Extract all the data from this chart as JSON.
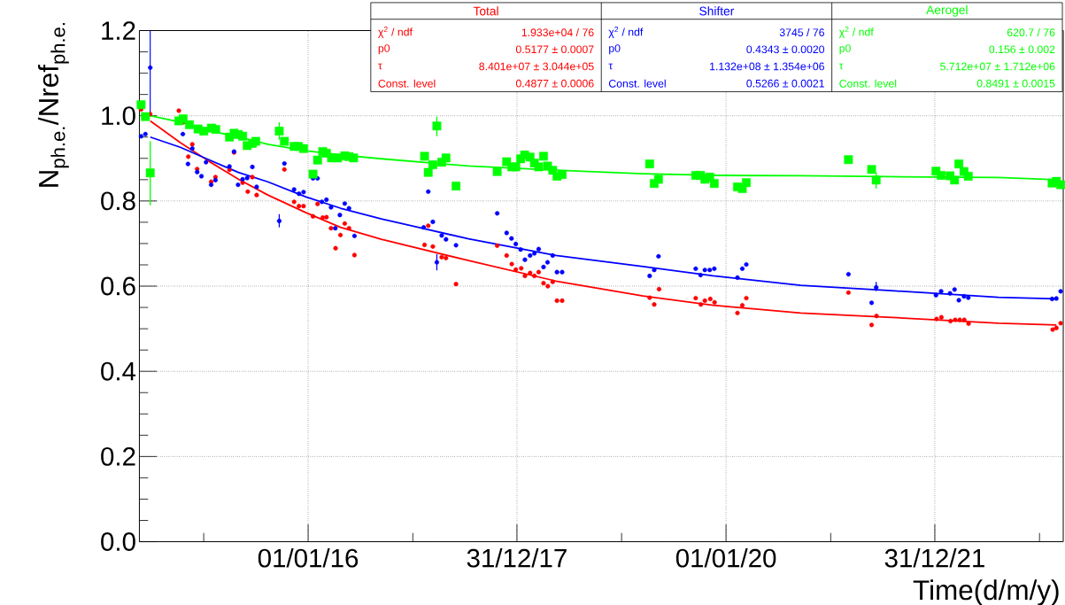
{
  "chart_data": {
    "type": "scatter",
    "ylabel": "N$_{ph.e.}$/Nref$_{ph.e.}$",
    "xlabel": "Time(d/m/y)",
    "xlim": [
      "2014-05-21",
      "2023-03-25"
    ],
    "ylim": [
      0,
      1.2
    ],
    "xticks": [
      {
        "value": "2015-01-01",
        "label": null
      },
      {
        "value": "2016-01-01",
        "label": "01/01/16"
      },
      {
        "value": "2017-01-01",
        "label": null
      },
      {
        "value": "2017-12-31",
        "label": "31/12/17"
      },
      {
        "value": "2019-01-01",
        "label": null
      },
      {
        "value": "2020-01-01",
        "label": "01/01/20"
      },
      {
        "value": "2021-01-01",
        "label": null
      },
      {
        "value": "2021-12-31",
        "label": "31/12/21"
      },
      {
        "value": "2023-01-01",
        "label": null
      }
    ],
    "yticks": [
      {
        "value": 0,
        "label": "0.0"
      },
      {
        "value": 0.05,
        "label": null
      },
      {
        "value": 0.1,
        "label": null
      },
      {
        "value": 0.15,
        "label": null
      },
      0.2,
      {
        "value": 0.25,
        "label": null
      },
      {
        "value": 0.3,
        "label": null
      },
      {
        "value": 0.35,
        "label": null
      },
      0.4,
      {
        "value": 0.45,
        "label": null
      },
      {
        "value": 0.5,
        "label": null
      },
      {
        "value": 0.55,
        "label": null
      },
      0.6,
      {
        "value": 0.65,
        "label": null
      },
      {
        "value": 0.7,
        "label": null
      },
      {
        "value": 0.75,
        "label": null
      },
      0.8,
      {
        "value": 0.85,
        "label": null
      },
      {
        "value": 0.9,
        "label": null
      },
      {
        "value": 0.95,
        "label": null
      },
      {
        "value": 1,
        "label": "1.0"
      },
      {
        "value": 1.05,
        "label": null
      },
      {
        "value": 1.1,
        "label": null
      },
      {
        "value": 1.15,
        "label": null
      },
      1.2
    ],
    "grid": true,
    "annotations": [
      "χ$^{2}$ / ndf",
      "1.933e+04 / 76",
      "p0",
      "0.5177 ± 0.0007",
      "τ",
      "8.401e+07 ± 3.044e+05",
      "Const. level",
      "0.4877 ± 0.0006",
      "χ$^{2}$ / ndf",
      "3745 / 76",
      "p0",
      "0.4343 ± 0.0020",
      "τ",
      "1.132e+08 ± 1.354e+06",
      "Const. level",
      "0.5266 ± 0.0021",
      "χ$^{2}$ / ndf",
      "620.7 / 76",
      "p0",
      "0.156 ± 0.002",
      "τ",
      "5.712e+07 ± 1.712e+06",
      "Const. level",
      "0.8491 ± 0.0015"
    ],
    "series": [
      {
        "name": "Total",
        "color": "#ff0000",
        "marker": "circle",
        "x": [
          "2014-05-27",
          "2014-06-28",
          "2014-10-06",
          "2014-10-21",
          "2014-11-22",
          "2014-11-08",
          "2014-12-09",
          "2015-01-27",
          "2015-02-11",
          "2015-04-01",
          "2015-04-17",
          "2015-05-17",
          "2015-06-04",
          "2015-06-20",
          "2015-07-05",
          "2015-10-10",
          "2015-11-13",
          "2015-11-30",
          "2015-12-16",
          "2016-01-18",
          "2016-02-03",
          "2016-02-21",
          "2016-03-05",
          "2016-03-21",
          "2016-04-06",
          "2016-04-23",
          "2016-05-08",
          "2016-05-23",
          "2016-06-11",
          "2017-02-11",
          "2017-02-24",
          "2017-03-12",
          "2017-04-12",
          "2017-04-27",
          "2017-06-01",
          "2017-10-23",
          "2017-11-25",
          "2017-12-13",
          "2017-12-27",
          "2018-01-15",
          "2018-01-28",
          "2018-02-15",
          "2018-03-02",
          "2018-03-17",
          "2018-04-03",
          "2018-04-18",
          "2018-05-05",
          "2018-05-20",
          "2018-06-07",
          "2019-04-09",
          "2019-04-25",
          "2019-05-12",
          "2019-09-17",
          "2019-10-05",
          "2019-10-19",
          "2019-11-07",
          "2019-11-22",
          "2020-02-10",
          "2020-02-27",
          "2020-03-12",
          "2021-03-04",
          "2021-05-24",
          "2021-06-10",
          "2022-01-06",
          "2022-01-23",
          "2022-02-24",
          "2022-03-12",
          "2022-03-28",
          "2022-04-13",
          "2022-04-28",
          "2023-02-16",
          "2023-03-01",
          "2023-03-16"
        ],
        "values": [
          1.015,
          1.004,
          1.012,
          0.985,
          0.933,
          0.904,
          0.875,
          0.845,
          0.856,
          0.873,
          0.914,
          0.843,
          0.822,
          0.856,
          0.814,
          0.874,
          0.798,
          0.788,
          0.788,
          0.764,
          0.793,
          0.761,
          0.762,
          0.736,
          0.689,
          0.72,
          0.747,
          0.736,
          0.673,
          0.697,
          0.742,
          0.693,
          0.668,
          0.666,
          0.605,
          0.695,
          0.672,
          0.652,
          0.639,
          0.642,
          0.624,
          0.631,
          0.624,
          0.633,
          0.607,
          0.6,
          0.61,
          0.566,
          0.566,
          0.573,
          0.557,
          0.593,
          0.572,
          0.557,
          0.566,
          0.57,
          0.562,
          0.537,
          0.555,
          0.572,
          0.585,
          0.509,
          0.53,
          0.523,
          0.527,
          0.518,
          0.521,
          0.521,
          0.521,
          0.512,
          0.498,
          0.502,
          0.513
        ]
      },
      {
        "name": "Shifter",
        "color": "#0000ff",
        "marker": "circle",
        "x": [
          "2014-05-27",
          "2014-06-11",
          "2014-06-28",
          "2014-10-20",
          "2014-11-07",
          "2014-11-22",
          "2014-12-09",
          "2014-12-24",
          "2015-01-09",
          "2015-01-27",
          "2015-02-11",
          "2015-04-01",
          "2015-04-17",
          "2015-05-01",
          "2015-05-17",
          "2015-06-02",
          "2015-06-20",
          "2015-07-05",
          "2015-09-22",
          "2015-10-10",
          "2015-11-13",
          "2015-11-30",
          "2015-12-16",
          "2016-01-18",
          "2016-02-03",
          "2016-02-18",
          "2016-03-05",
          "2016-03-21",
          "2016-04-05",
          "2016-04-21",
          "2016-05-08",
          "2016-05-23",
          "2016-06-11",
          "2017-02-24",
          "2017-02-08",
          "2017-03-12",
          "2017-03-26",
          "2017-04-12",
          "2017-04-27",
          "2017-06-01",
          "2017-10-23",
          "2017-11-25",
          "2017-12-12",
          "2017-12-27",
          "2018-01-13",
          "2018-01-28",
          "2018-02-15",
          "2018-03-02",
          "2018-03-17",
          "2018-04-03",
          "2018-04-17",
          "2018-05-05",
          "2018-05-20",
          "2018-06-07",
          "2019-04-09",
          "2019-04-25",
          "2019-05-10",
          "2019-09-17",
          "2019-10-04",
          "2019-10-19",
          "2019-11-05",
          "2019-11-21",
          "2020-02-10",
          "2020-02-27",
          "2020-03-12",
          "2021-03-04",
          "2021-05-24",
          "2021-06-09",
          "2022-01-04",
          "2022-01-22",
          "2022-02-22",
          "2022-03-10",
          "2022-03-25",
          "2022-04-12",
          "2022-04-27",
          "2023-02-14",
          "2023-03-01",
          "2023-03-16"
        ],
        "values": [
          0.952,
          0.957,
          1.113,
          0.957,
          0.887,
          0.923,
          0.868,
          0.858,
          0.891,
          0.838,
          0.849,
          0.881,
          0.916,
          0.838,
          0.851,
          0.854,
          0.88,
          0.833,
          0.753,
          0.888,
          0.827,
          0.817,
          0.821,
          0.853,
          0.853,
          0.798,
          0.803,
          0.785,
          0.736,
          0.767,
          0.794,
          0.783,
          0.718,
          0.822,
          0.738,
          0.751,
          0.656,
          0.719,
          0.71,
          0.696,
          0.771,
          0.725,
          0.712,
          0.699,
          0.686,
          0.662,
          0.672,
          0.677,
          0.687,
          0.645,
          0.656,
          0.672,
          0.633,
          0.633,
          0.624,
          0.638,
          0.67,
          0.641,
          0.626,
          0.638,
          0.638,
          0.641,
          0.62,
          0.641,
          0.651,
          0.628,
          0.561,
          0.597,
          0.579,
          0.588,
          0.583,
          0.592,
          0.567,
          0.576,
          0.573,
          0.57,
          0.571,
          0.588
        ],
        "errors": [
          null,
          null,
          [
            1.005,
            1.2
          ],
          null,
          null,
          null,
          null,
          null,
          null,
          null,
          null,
          null,
          null,
          null,
          null,
          null,
          null,
          null,
          [
            0.738,
            0.769
          ],
          null,
          null,
          null,
          null,
          null,
          null,
          null,
          null,
          null,
          null,
          null,
          null,
          null,
          null,
          null,
          null,
          null,
          [
            0.637,
            0.675
          ],
          null,
          null,
          null,
          null,
          null,
          null,
          null,
          null,
          null,
          null,
          null,
          null,
          null,
          null,
          null,
          null,
          null,
          null,
          null,
          null,
          null,
          null,
          null,
          null,
          null,
          null,
          null,
          null,
          null,
          null,
          [
            0.588,
            0.61
          ],
          null,
          null,
          null,
          null,
          null,
          null,
          null,
          null,
          null,
          null
        ]
      },
      {
        "name": "Aerogel",
        "color": "#00ff00",
        "marker": "square",
        "x": [
          "2014-05-27",
          "2014-06-11",
          "2014-06-28",
          "2014-10-06",
          "2014-10-21",
          "2014-11-12",
          "2014-12-12",
          "2015-01-01",
          "2015-01-28",
          "2015-02-12",
          "2015-04-01",
          "2015-04-17",
          "2015-05-02",
          "2015-05-17",
          "2015-06-02",
          "2015-06-20",
          "2015-07-02",
          "2015-09-22",
          "2015-10-10",
          "2015-11-13",
          "2015-11-28",
          "2015-12-16",
          "2016-01-18",
          "2016-02-03",
          "2016-02-21",
          "2016-03-05",
          "2016-03-23",
          "2016-04-13",
          "2016-05-08",
          "2016-05-23",
          "2016-06-08",
          "2017-02-11",
          "2017-02-24",
          "2017-03-12",
          "2017-03-26",
          "2017-04-12",
          "2017-04-27",
          "2017-06-01",
          "2017-10-23",
          "2017-11-25",
          "2017-12-13",
          "2017-12-27",
          "2018-01-13",
          "2018-01-27",
          "2018-02-15",
          "2018-03-02",
          "2018-03-17",
          "2018-04-03",
          "2018-04-17",
          "2018-05-05",
          "2018-05-20",
          "2018-06-07",
          "2019-04-09",
          "2019-04-25",
          "2019-05-10",
          "2019-09-17",
          "2019-10-04",
          "2019-10-19",
          "2019-11-05",
          "2019-11-21",
          "2020-02-10",
          "2020-02-27",
          "2020-03-12",
          "2021-03-04",
          "2021-05-24",
          "2021-06-09",
          "2022-01-04",
          "2022-01-22",
          "2022-02-22",
          "2022-03-10",
          "2022-03-25",
          "2022-04-12",
          "2022-04-27",
          "2023-02-14",
          "2023-03-01",
          "2023-03-16"
        ],
        "values": [
          1.026,
          0.998,
          0.866,
          0.988,
          0.993,
          0.979,
          0.969,
          0.964,
          0.971,
          0.968,
          0.95,
          0.959,
          0.956,
          0.952,
          0.93,
          0.935,
          0.94,
          0.964,
          0.94,
          0.928,
          0.928,
          0.923,
          0.863,
          0.896,
          0.916,
          0.912,
          0.901,
          0.901,
          0.906,
          0.904,
          0.901,
          0.905,
          0.867,
          0.885,
          0.976,
          0.891,
          0.901,
          0.835,
          0.869,
          0.892,
          0.88,
          0.88,
          0.899,
          0.908,
          0.903,
          0.889,
          0.88,
          0.905,
          0.882,
          0.872,
          0.858,
          0.862,
          0.887,
          0.841,
          0.851,
          0.86,
          0.86,
          0.851,
          0.856,
          0.841,
          0.833,
          0.829,
          0.843,
          0.897,
          0.874,
          0.849,
          0.87,
          0.86,
          0.859,
          0.849,
          0.887,
          0.869,
          0.858,
          0.842,
          0.846,
          0.838
        ],
        "errors": [
          null,
          null,
          [
            0.79,
            0.94
          ],
          null,
          null,
          null,
          null,
          null,
          null,
          null,
          null,
          null,
          null,
          null,
          null,
          null,
          null,
          [
            0.944,
            0.985
          ],
          null,
          null,
          null,
          null,
          null,
          null,
          null,
          null,
          null,
          null,
          null,
          null,
          null,
          null,
          null,
          null,
          [
            0.952,
            0.998
          ],
          null,
          null,
          null,
          null,
          null,
          null,
          null,
          null,
          null,
          null,
          null,
          null,
          null,
          null,
          null,
          null,
          null,
          null,
          null,
          null,
          null,
          null,
          null,
          null,
          null,
          null,
          null,
          null,
          null,
          null,
          [
            0.829,
            0.867
          ],
          null,
          null,
          null,
          null,
          null,
          null,
          null,
          null,
          null,
          null
        ]
      },
      {
        "type": "line",
        "color": "#ff0000",
        "x": [
          "2014-06-28",
          "2014-10-11",
          "2015-01-22",
          "2015-05-02",
          "2015-08-13",
          "2015-12-23",
          "2016-04-23",
          "2016-09-13",
          "2017-07-15",
          "2018-05-16",
          "2019-03-17",
          "2019-11-17",
          "2020-09-18",
          "2021-07-19",
          "2022-08-10",
          "2023-03-01"
        ],
        "values": [
          0.988,
          0.937,
          0.892,
          0.851,
          0.814,
          0.773,
          0.738,
          0.71,
          0.66,
          0.612,
          0.577,
          0.555,
          0.537,
          0.527,
          0.513,
          0.509
        ]
      },
      {
        "type": "line",
        "color": "#0000ff",
        "x": [
          "2014-06-28",
          "2014-10-11",
          "2015-01-22",
          "2015-05-02",
          "2015-08-13",
          "2015-12-23",
          "2016-04-23",
          "2016-09-13",
          "2017-07-15",
          "2018-05-16",
          "2019-03-17",
          "2019-11-17",
          "2020-09-18",
          "2021-07-19",
          "2022-08-10",
          "2023-03-01"
        ],
        "values": [
          0.95,
          0.926,
          0.896,
          0.867,
          0.845,
          0.81,
          0.783,
          0.758,
          0.711,
          0.672,
          0.646,
          0.624,
          0.602,
          0.59,
          0.574,
          0.57
        ]
      },
      {
        "type": "line",
        "color": "#00ff00",
        "x": [
          "2014-06-28",
          "2014-10-11",
          "2015-01-22",
          "2015-05-02",
          "2015-08-13",
          "2015-12-23",
          "2016-04-23",
          "2016-09-13",
          "2017-07-15",
          "2018-05-16",
          "2019-03-17",
          "2019-11-17",
          "2020-09-18",
          "2021-07-19",
          "2022-08-10",
          "2023-03-01"
        ],
        "values": [
          1.0,
          0.985,
          0.965,
          0.95,
          0.933,
          0.918,
          0.908,
          0.899,
          0.882,
          0.872,
          0.864,
          0.86,
          0.859,
          0.857,
          0.855,
          0.85
        ]
      }
    ]
  }
}
